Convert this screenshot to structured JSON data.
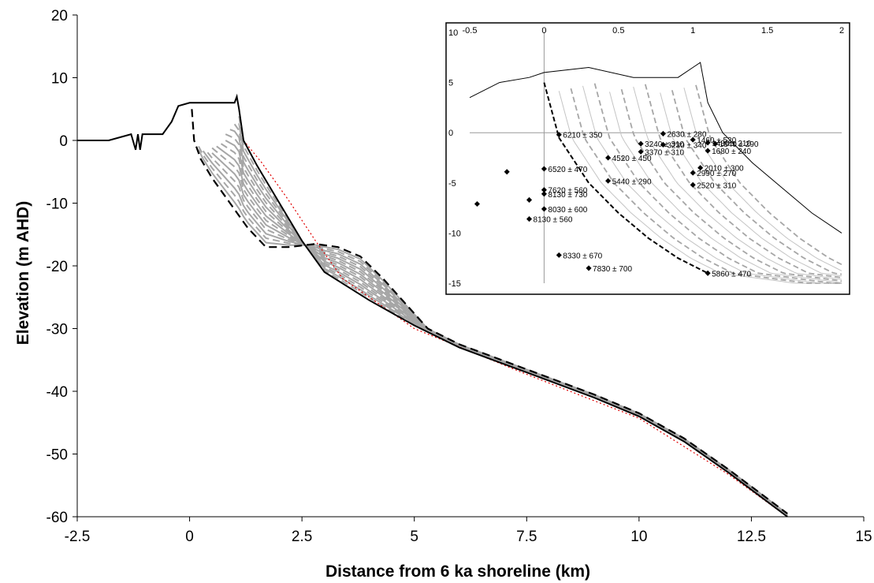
{
  "chart_data": [
    {
      "type": "line",
      "xlabel": "Distance from 6 ka shoreline (km)",
      "ylabel": "Elevation (m AHD)",
      "xlim": [
        -2.5,
        15
      ],
      "ylim": [
        -60,
        20
      ],
      "xticks": [
        "-2.5",
        "0",
        "2.5",
        "5",
        "7.5",
        "10",
        "12.5",
        "15"
      ],
      "yticks": [
        "20",
        "10",
        "0",
        "-10",
        "-20",
        "-30",
        "-40",
        "-50",
        "-60"
      ],
      "grid": false,
      "series": [
        {
          "style": "present profile (solid black)",
          "x": [
            -2.5,
            -1.8,
            -1.3,
            -1.2,
            -1.15,
            -1.1,
            -1.05,
            -0.8,
            -0.6,
            -0.4,
            -0.25,
            0,
            0.5,
            1.0,
            1.05,
            1.1,
            1.2,
            1.5,
            2.0,
            2.5,
            3.0,
            4.0,
            5.0,
            6.0,
            7.5,
            9.0,
            10.0,
            11.0,
            12.0,
            13.3
          ],
          "y": [
            0,
            0,
            1,
            -1.5,
            1,
            -1.5,
            1,
            1,
            1,
            3,
            5.5,
            6,
            6,
            6,
            7,
            5,
            0,
            -4,
            -10,
            -16,
            -21,
            -25.5,
            -29.5,
            -33,
            -37,
            -41,
            -44,
            -48,
            -53,
            -60
          ]
        },
        {
          "style": "6 ka reconstructed profile (dashed black)",
          "x": [
            0.05,
            0.1,
            0.25,
            0.5,
            0.9,
            1.3,
            1.7,
            2.2,
            2.8,
            3.3,
            3.8,
            4.3,
            4.8,
            5.3,
            6.0,
            7.5,
            9.0,
            10.0,
            11.0,
            12.0,
            13.3
          ],
          "y": [
            5,
            0,
            -3,
            -6,
            -10,
            -14,
            -17,
            -17,
            -16.5,
            -17,
            -18.5,
            -22,
            -26,
            -30,
            -32.5,
            -36.5,
            -40.5,
            -43.5,
            -47.5,
            -52.5,
            -59.5
          ]
        },
        {
          "style": "bathymetric survey (dotted red)",
          "x": [
            1.2,
            1.6,
            2.2,
            2.8,
            3.4,
            5.0,
            7.5,
            10.0,
            12.0,
            13.3
          ],
          "y": [
            0,
            -3.5,
            -9.5,
            -16,
            -22,
            -30,
            -37.3,
            -44.3,
            -53.3,
            -60
          ]
        }
      ],
      "intermediate_profiles": {
        "style": "alternating solid and dashed grey isochrons",
        "count": 14
      }
    },
    {
      "type": "scatter",
      "xlim": [
        -0.5,
        2
      ],
      "ylim": [
        -15,
        10
      ],
      "xticks": [
        "-0.5",
        "0",
        "0.5",
        "1",
        "1.5",
        "2"
      ],
      "yticks": [
        "10",
        "5",
        "0",
        "-5",
        "-10",
        "-15"
      ],
      "points": [
        {
          "x": 0.1,
          "y": -0.2,
          "label": "6210 ± 350"
        },
        {
          "x": 0.0,
          "y": -3.6,
          "label": "6520 ± 470"
        },
        {
          "x": -0.25,
          "y": -3.9,
          "label": ""
        },
        {
          "x": 0.0,
          "y": -5.7,
          "label": "7620 ± 560"
        },
        {
          "x": -0.45,
          "y": -7.1,
          "label": ""
        },
        {
          "x": -0.1,
          "y": -6.7,
          "label": ""
        },
        {
          "x": 0.0,
          "y": -6.1,
          "label": "8130 ± 730"
        },
        {
          "x": 0.0,
          "y": -7.6,
          "label": "8030 ± 600"
        },
        {
          "x": -0.1,
          "y": -8.6,
          "label": "8130 ± 560"
        },
        {
          "x": 0.1,
          "y": -12.2,
          "label": "8330 ± 670"
        },
        {
          "x": 0.3,
          "y": -13.5,
          "label": "7830 ± 700"
        },
        {
          "x": 0.43,
          "y": -2.5,
          "label": "4520 ± 450"
        },
        {
          "x": 0.43,
          "y": -4.8,
          "label": "5440 ± 290"
        },
        {
          "x": 0.65,
          "y": -1.1,
          "label": "3240 ± 310"
        },
        {
          "x": 0.65,
          "y": -1.9,
          "label": "3370 ± 310"
        },
        {
          "x": 0.8,
          "y": -1.2,
          "label": "3230 ± 340"
        },
        {
          "x": 0.8,
          "y": -0.1,
          "label": "2630 ± 280"
        },
        {
          "x": 1.0,
          "y": -0.7,
          "label": "1460 ± 520"
        },
        {
          "x": 1.1,
          "y": -1.0,
          "label": "1430 ± 210"
        },
        {
          "x": 1.15,
          "y": -1.1,
          "label": "1840 ± 290"
        },
        {
          "x": 1.1,
          "y": -1.8,
          "label": "1680 ± 240"
        },
        {
          "x": 1.05,
          "y": -3.5,
          "label": "2010 ± 300"
        },
        {
          "x": 1.0,
          "y": -4.0,
          "label": "2990 ± 270"
        },
        {
          "x": 1.0,
          "y": -5.2,
          "label": "2520 ± 310"
        },
        {
          "x": 1.1,
          "y": -14.0,
          "label": "5860 ± 470"
        }
      ],
      "series": [
        {
          "style": "present profile (solid black)",
          "x": [
            -0.5,
            -0.3,
            -0.1,
            0.0,
            0.3,
            0.6,
            0.9,
            1.0,
            1.05,
            1.1,
            1.2,
            1.4,
            1.6,
            1.8,
            2.0
          ],
          "y": [
            3.5,
            5,
            5.5,
            6,
            6.5,
            5.5,
            5.5,
            6.5,
            7,
            3,
            0,
            -3,
            -5.5,
            -8,
            -10
          ]
        },
        {
          "style": "6 ka reconstructed profile (dashed black)",
          "x": [
            0.0,
            0.1,
            0.3,
            0.5,
            0.7,
            0.9,
            1.1
          ],
          "y": [
            5,
            -0.5,
            -5,
            -8,
            -10.5,
            -12.5,
            -14
          ]
        }
      ]
    }
  ]
}
